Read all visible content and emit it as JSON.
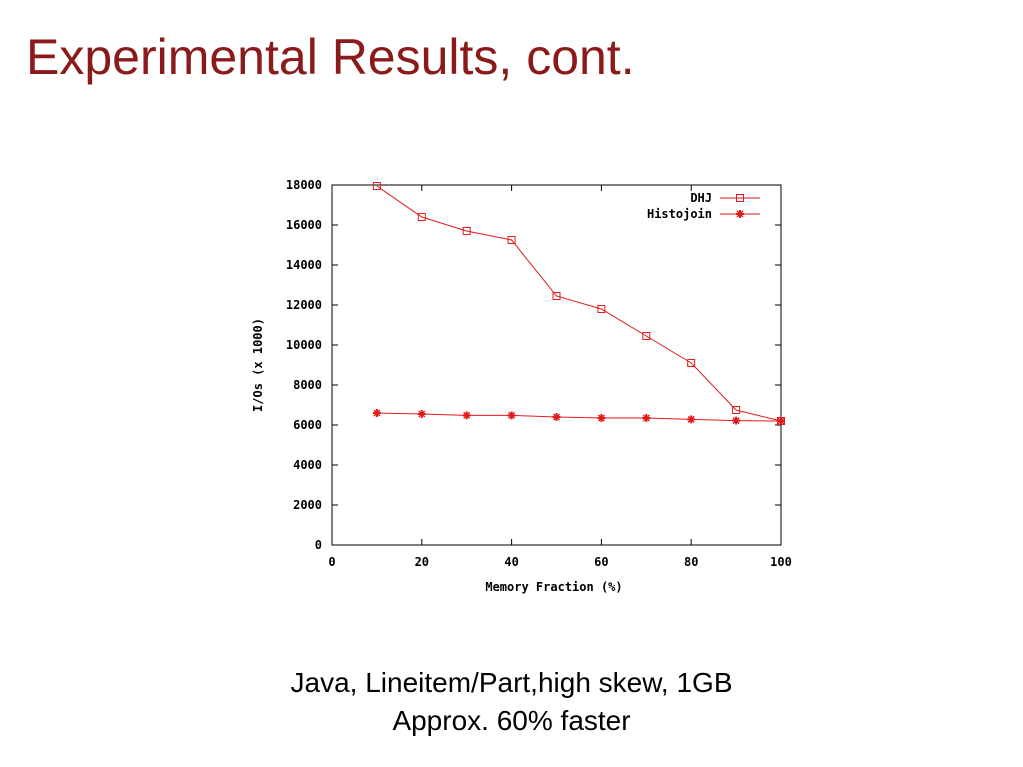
{
  "slide": {
    "title": "Experimental Results, cont.",
    "caption_line1": "Java, Lineitem/Part,high skew, 1GB",
    "caption_line2": "Approx. 60% faster"
  },
  "chart_data": {
    "type": "line",
    "title": "",
    "xlabel": "Memory Fraction (%)",
    "ylabel": "I/Os (x 1000)",
    "xlim": [
      0,
      100
    ],
    "ylim": [
      0,
      18000
    ],
    "x_ticks": [
      0,
      20,
      40,
      60,
      80,
      100
    ],
    "y_ticks": [
      0,
      2000,
      4000,
      6000,
      8000,
      10000,
      12000,
      14000,
      16000,
      18000
    ],
    "grid": false,
    "legend_position": "top-right",
    "x": [
      10,
      20,
      30,
      40,
      50,
      60,
      70,
      80,
      90,
      100
    ],
    "series": [
      {
        "name": "DHJ",
        "marker": "open-square",
        "color": "#e31a1c",
        "values": [
          17950,
          16400,
          15700,
          15250,
          12450,
          11800,
          10450,
          9100,
          6750,
          6200
        ]
      },
      {
        "name": "Histojoin",
        "marker": "star",
        "color": "#e31a1c",
        "values": [
          6600,
          6550,
          6480,
          6480,
          6400,
          6350,
          6350,
          6280,
          6220,
          6200
        ]
      }
    ]
  }
}
